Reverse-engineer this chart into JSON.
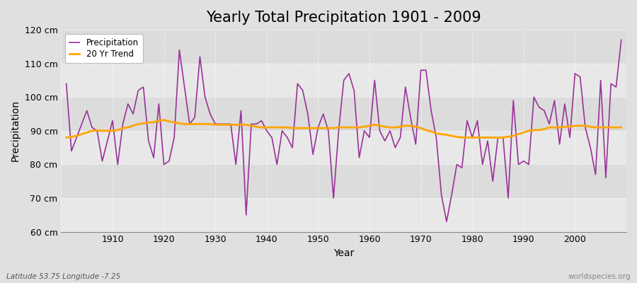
{
  "title": "Yearly Total Precipitation 1901 - 2009",
  "xlabel": "Year",
  "ylabel": "Precipitation",
  "subtitle": "Latitude 53.75 Longitude -7.25",
  "watermark": "worldspecies.org",
  "ylim": [
    60,
    120
  ],
  "yticks": [
    60,
    70,
    80,
    90,
    100,
    110,
    120
  ],
  "ytick_labels": [
    "60 cm",
    "70 cm",
    "80 cm",
    "90 cm",
    "100 cm",
    "110 cm",
    "120 cm"
  ],
  "years": [
    1901,
    1902,
    1903,
    1904,
    1905,
    1906,
    1907,
    1908,
    1909,
    1910,
    1911,
    1912,
    1913,
    1914,
    1915,
    1916,
    1917,
    1918,
    1919,
    1920,
    1921,
    1922,
    1923,
    1924,
    1925,
    1926,
    1927,
    1928,
    1929,
    1930,
    1931,
    1932,
    1933,
    1934,
    1935,
    1936,
    1937,
    1938,
    1939,
    1940,
    1941,
    1942,
    1943,
    1944,
    1945,
    1946,
    1947,
    1948,
    1949,
    1950,
    1951,
    1952,
    1953,
    1954,
    1955,
    1956,
    1957,
    1958,
    1959,
    1960,
    1961,
    1962,
    1963,
    1964,
    1965,
    1966,
    1967,
    1968,
    1969,
    1970,
    1971,
    1972,
    1973,
    1974,
    1975,
    1976,
    1977,
    1978,
    1979,
    1980,
    1981,
    1982,
    1983,
    1984,
    1985,
    1986,
    1987,
    1988,
    1989,
    1990,
    1991,
    1992,
    1993,
    1994,
    1995,
    1996,
    1997,
    1998,
    1999,
    2000,
    2001,
    2002,
    2003,
    2004,
    2005,
    2006,
    2007,
    2008,
    2009
  ],
  "precip": [
    104,
    84,
    88,
    92,
    96,
    91,
    90,
    81,
    87,
    93,
    80,
    92,
    98,
    95,
    102,
    103,
    87,
    82,
    98,
    80,
    81,
    88,
    114,
    103,
    92,
    94,
    112,
    100,
    95,
    92,
    92,
    92,
    92,
    80,
    96,
    65,
    92,
    92,
    93,
    90,
    88,
    80,
    90,
    88,
    85,
    104,
    102,
    95,
    83,
    91,
    95,
    90,
    70,
    90,
    105,
    107,
    102,
    82,
    90,
    88,
    105,
    90,
    87,
    90,
    85,
    88,
    103,
    94,
    86,
    108,
    108,
    96,
    88,
    71,
    63,
    71,
    80,
    79,
    93,
    88,
    93,
    80,
    87,
    75,
    88,
    88,
    70,
    99,
    80,
    81,
    80,
    100,
    97,
    96,
    92,
    99,
    86,
    98,
    88,
    107,
    106,
    91,
    85,
    77,
    105,
    76,
    104,
    103,
    117
  ],
  "trend": [
    88.0,
    88.2,
    88.5,
    89.0,
    89.5,
    90.0,
    90.1,
    90.0,
    90.0,
    90.0,
    90.2,
    90.8,
    91.0,
    91.5,
    92.0,
    92.2,
    92.5,
    92.5,
    93.0,
    93.2,
    92.8,
    92.5,
    92.2,
    92.0,
    92.0,
    92.0,
    92.0,
    92.0,
    92.0,
    91.8,
    91.8,
    91.8,
    91.8,
    91.8,
    91.8,
    91.8,
    91.5,
    91.2,
    91.0,
    91.0,
    91.0,
    91.0,
    91.0,
    91.0,
    90.8,
    90.8,
    90.8,
    90.8,
    90.8,
    90.8,
    90.8,
    90.8,
    90.8,
    91.0,
    91.0,
    91.0,
    91.0,
    91.0,
    91.2,
    91.5,
    91.8,
    91.5,
    91.2,
    91.0,
    91.0,
    91.2,
    91.5,
    91.5,
    91.2,
    90.8,
    90.2,
    89.8,
    89.2,
    89.0,
    88.8,
    88.5,
    88.2,
    88.0,
    88.0,
    88.0,
    88.0,
    88.0,
    88.0,
    88.0,
    88.0,
    88.0,
    88.2,
    88.5,
    89.0,
    89.5,
    90.0,
    90.2,
    90.2,
    90.5,
    91.0,
    91.0,
    91.0,
    91.2,
    91.2,
    91.5,
    91.5,
    91.5,
    91.2,
    91.0,
    91.0,
    91.0,
    91.0,
    91.0,
    91.0
  ],
  "precip_color": "#993399",
  "trend_color": "#FFA500",
  "bg_color": "#E0E0E0",
  "plot_bg_light": "#E8E8E8",
  "plot_bg_dark": "#DCDCDC",
  "grid_color": "#FFFFFF",
  "title_fontsize": 15,
  "label_fontsize": 10,
  "tick_fontsize": 9,
  "xlim": [
    1900,
    2010
  ]
}
